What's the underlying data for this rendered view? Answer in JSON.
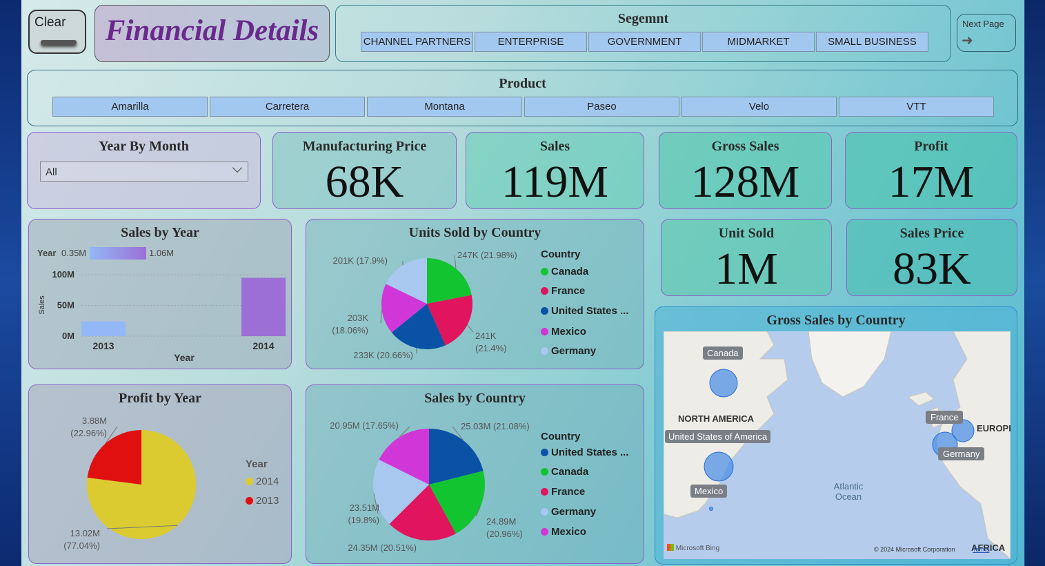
{
  "header": {
    "clear_label": "Clear",
    "title": "Financial Details",
    "next_page_label": "Next Page"
  },
  "segment": {
    "title": "Segemnt",
    "options": [
      "CHANNEL PARTNERS",
      "ENTERPRISE",
      "GOVERNMENT",
      "MIDMARKET",
      "SMALL BUSINESS"
    ]
  },
  "product": {
    "title": "Product",
    "options": [
      "Amarilla",
      "Carretera",
      "Montana",
      "Paseo",
      "Velo",
      "VTT"
    ]
  },
  "year_by_month": {
    "title": "Year By Month",
    "selected": "All"
  },
  "kpis": {
    "manufacturing_price": {
      "label": "Manufacturing Price",
      "value": "68K"
    },
    "sales": {
      "label": "Sales",
      "value": "119M"
    },
    "gross_sales": {
      "label": "Gross Sales",
      "value": "128M"
    },
    "profit": {
      "label": "Profit",
      "value": "17M"
    },
    "unit_sold": {
      "label": "Unit Sold",
      "value": "1M"
    },
    "sales_price": {
      "label": "Sales Price",
      "value": "83K"
    }
  },
  "colors": {
    "canada": "#12c430",
    "france": "#e0155d",
    "united_states": "#0a52a6",
    "mexico": "#d136d8",
    "germany": "#a8c8ef",
    "year_2014": "#dccb30",
    "year_2013": "#e01010",
    "bar_2013": "#93b8f5",
    "bar_2014": "#9b6fd6"
  },
  "chart_data": [
    {
      "type": "bar",
      "title": "Sales by Year",
      "categories": [
        "2013",
        "2014"
      ],
      "values": [
        24,
        95
      ],
      "xlabel": "Year",
      "ylabel": "Sales",
      "ylim": [
        0,
        100
      ],
      "yticks": [
        "0M",
        "50M",
        "100M"
      ],
      "color_legend": {
        "title": "Year",
        "min_label": "0.35M",
        "max_label": "1.06M"
      }
    },
    {
      "type": "pie",
      "title": "Units Sold by Country",
      "legend_title": "Country",
      "legend": [
        "Canada",
        "France",
        "United States ...",
        "Mexico",
        "Germany"
      ],
      "slices": [
        {
          "name": "Canada",
          "value": 247,
          "label": "247K (21.98%)"
        },
        {
          "name": "France",
          "value": 241,
          "label": "241K (21.4%)"
        },
        {
          "name": "United States of America",
          "value": 233,
          "label": "233K (20.66%)"
        },
        {
          "name": "Mexico",
          "value": 203,
          "label": "203K (18.06%)"
        },
        {
          "name": "Germany",
          "value": 201,
          "label": "201K (17.9%)"
        }
      ]
    },
    {
      "type": "pie",
      "title": "Profit by Year",
      "legend_title": "Year",
      "legend": [
        "2014",
        "2013"
      ],
      "slices": [
        {
          "name": "2014",
          "value": 13.02,
          "label": "13.02M (77.04%)"
        },
        {
          "name": "2013",
          "value": 3.88,
          "label": "3.88M (22.96%)"
        }
      ]
    },
    {
      "type": "pie",
      "title": "Sales by Country",
      "legend_title": "Country",
      "legend": [
        "United States ...",
        "Canada",
        "France",
        "Germany",
        "Mexico"
      ],
      "slices": [
        {
          "name": "United States of America",
          "value": 25.03,
          "label": "25.03M (21.08%)"
        },
        {
          "name": "Canada",
          "value": 24.89,
          "label": "24.89M (20.96%)"
        },
        {
          "name": "France",
          "value": 24.35,
          "label": "24.35M (20.51%)"
        },
        {
          "name": "Germany",
          "value": 23.51,
          "label": "23.51M (19.8%)"
        },
        {
          "name": "Mexico",
          "value": 20.95,
          "label": "20.95M (17.65%)"
        }
      ]
    }
  ],
  "map": {
    "title": "Gross Sales by Country",
    "bubbles": [
      "Canada",
      "United States of America",
      "Mexico",
      "France",
      "Germany"
    ],
    "region_labels": [
      "NORTH AMERICA",
      "EUROPE",
      "AFRICA",
      "Atlantic Ocean"
    ],
    "attribution": "© 2024 Microsoft Corporation",
    "terms": "Terms",
    "brand": "Microsoft Bing"
  }
}
